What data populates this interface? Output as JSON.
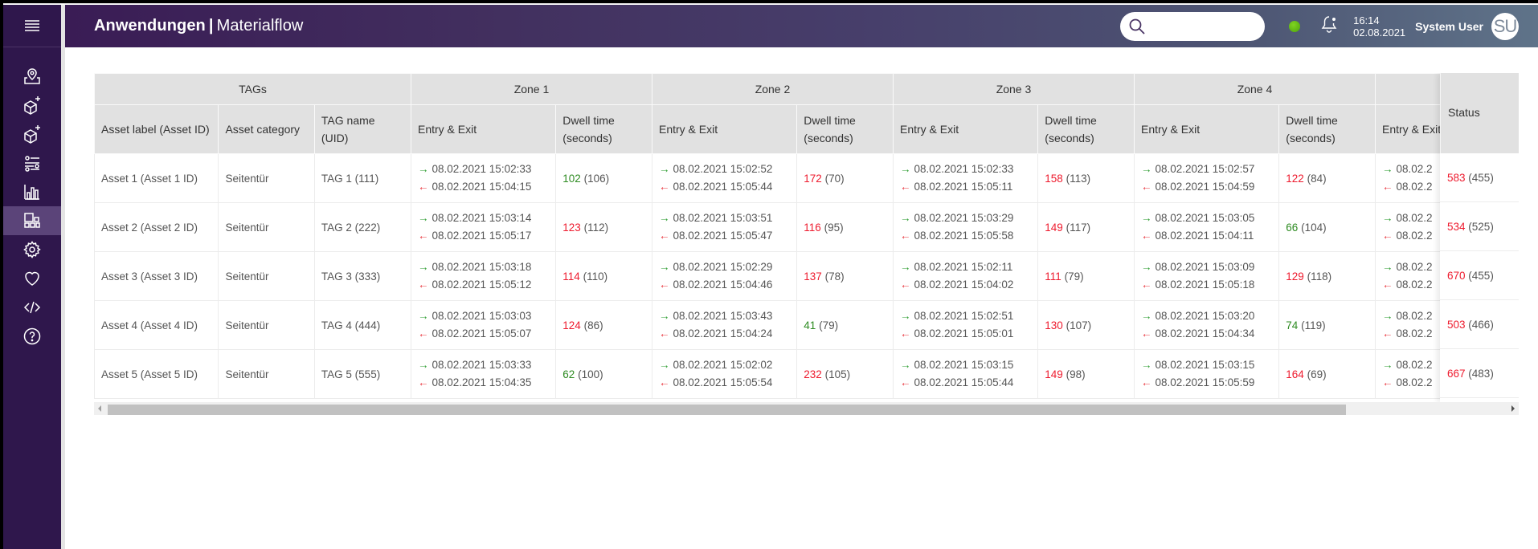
{
  "header": {
    "app_title": "Anwendungen",
    "separator": "|",
    "page_title": "Materialflow",
    "search_placeholder": "",
    "status_indicator_color": "#5cb815",
    "time": "16:14",
    "date": "02.08.2021",
    "user_name": "System User",
    "user_initials": "SU"
  },
  "sidebar": {
    "items": [
      {
        "icon": "map-pin-icon",
        "active": false
      },
      {
        "icon": "add-box-icon",
        "active": false
      },
      {
        "icon": "add-box-icon-2",
        "active": false
      },
      {
        "icon": "sliders-icon",
        "active": false
      },
      {
        "icon": "bar-chart-icon",
        "active": false
      },
      {
        "icon": "dashboard-icon",
        "active": true
      },
      {
        "icon": "gear-icon",
        "active": false
      },
      {
        "icon": "heart-icon",
        "active": false
      },
      {
        "icon": "code-icon",
        "active": false
      },
      {
        "icon": "help-icon",
        "active": false
      }
    ]
  },
  "table": {
    "group_headers": {
      "tags": "TAGs",
      "zone1": "Zone 1",
      "zone2": "Zone 2",
      "zone3": "Zone 3",
      "zone4": "Zone 4",
      "zone5": ""
    },
    "columns": {
      "asset_label": "Asset label (Asset ID)",
      "asset_category": "Asset category",
      "tag_name": "TAG name (UID)",
      "entry_exit": "Entry & Exit",
      "dwell_line1": "Dwell time",
      "dwell_line2": "(seconds)",
      "status": "Status"
    },
    "rows": [
      {
        "asset": "Asset 1 (Asset 1 ID)",
        "category": "Seitentür",
        "tag": "TAG 1 (111)",
        "zones": [
          {
            "entry": "08.02.2021 15:02:33",
            "exit": "08.02.2021 15:04:15",
            "dwell": "102",
            "dwell_ref": "(106)",
            "dwell_state": "green"
          },
          {
            "entry": "08.02.2021 15:02:52",
            "exit": "08.02.2021 15:05:44",
            "dwell": "172",
            "dwell_ref": "(70)",
            "dwell_state": "red"
          },
          {
            "entry": "08.02.2021 15:02:33",
            "exit": "08.02.2021 15:05:11",
            "dwell": "158",
            "dwell_ref": "(113)",
            "dwell_state": "red"
          },
          {
            "entry": "08.02.2021 15:02:57",
            "exit": "08.02.2021 15:04:59",
            "dwell": "122",
            "dwell_ref": "(84)",
            "dwell_state": "red"
          },
          {
            "entry": "08.02.2",
            "exit": "08.02.2"
          }
        ],
        "status": "583",
        "status_ref": "(455)"
      },
      {
        "asset": "Asset 2 (Asset 2 ID)",
        "category": "Seitentür",
        "tag": "TAG 2 (222)",
        "zones": [
          {
            "entry": "08.02.2021 15:03:14",
            "exit": "08.02.2021 15:05:17",
            "dwell": "123",
            "dwell_ref": "(112)",
            "dwell_state": "red"
          },
          {
            "entry": "08.02.2021 15:03:51",
            "exit": "08.02.2021 15:05:47",
            "dwell": "116",
            "dwell_ref": "(95)",
            "dwell_state": "red"
          },
          {
            "entry": "08.02.2021 15:03:29",
            "exit": "08.02.2021 15:05:58",
            "dwell": "149",
            "dwell_ref": "(117)",
            "dwell_state": "red"
          },
          {
            "entry": "08.02.2021 15:03:05",
            "exit": "08.02.2021 15:04:11",
            "dwell": "66",
            "dwell_ref": "(104)",
            "dwell_state": "green"
          },
          {
            "entry": "08.02.2",
            "exit": "08.02.2"
          }
        ],
        "status": "534",
        "status_ref": "(525)"
      },
      {
        "asset": "Asset 3 (Asset 3 ID)",
        "category": "Seitentür",
        "tag": "TAG 3 (333)",
        "zones": [
          {
            "entry": "08.02.2021 15:03:18",
            "exit": "08.02.2021 15:05:12",
            "dwell": "114",
            "dwell_ref": "(110)",
            "dwell_state": "red"
          },
          {
            "entry": "08.02.2021 15:02:29",
            "exit": "08.02.2021 15:04:46",
            "dwell": "137",
            "dwell_ref": "(78)",
            "dwell_state": "red"
          },
          {
            "entry": "08.02.2021 15:02:11",
            "exit": "08.02.2021 15:04:02",
            "dwell": "111",
            "dwell_ref": "(79)",
            "dwell_state": "red"
          },
          {
            "entry": "08.02.2021 15:03:09",
            "exit": "08.02.2021 15:05:18",
            "dwell": "129",
            "dwell_ref": "(118)",
            "dwell_state": "red"
          },
          {
            "entry": "08.02.2",
            "exit": "08.02.2"
          }
        ],
        "status": "670",
        "status_ref": "(455)"
      },
      {
        "asset": "Asset 4 (Asset 4 ID)",
        "category": "Seitentür",
        "tag": "TAG 4 (444)",
        "zones": [
          {
            "entry": "08.02.2021 15:03:03",
            "exit": "08.02.2021 15:05:07",
            "dwell": "124",
            "dwell_ref": "(86)",
            "dwell_state": "red"
          },
          {
            "entry": "08.02.2021 15:03:43",
            "exit": "08.02.2021 15:04:24",
            "dwell": "41",
            "dwell_ref": "(79)",
            "dwell_state": "green"
          },
          {
            "entry": "08.02.2021 15:02:51",
            "exit": "08.02.2021 15:05:01",
            "dwell": "130",
            "dwell_ref": "(107)",
            "dwell_state": "red"
          },
          {
            "entry": "08.02.2021 15:03:20",
            "exit": "08.02.2021 15:04:34",
            "dwell": "74",
            "dwell_ref": "(119)",
            "dwell_state": "green"
          },
          {
            "entry": "08.02.2",
            "exit": "08.02.2"
          }
        ],
        "status": "503",
        "status_ref": "(466)"
      },
      {
        "asset": "Asset 5 (Asset 5 ID)",
        "category": "Seitentür",
        "tag": "TAG 5 (555)",
        "zones": [
          {
            "entry": "08.02.2021 15:03:33",
            "exit": "08.02.2021 15:04:35",
            "dwell": "62",
            "dwell_ref": "(100)",
            "dwell_state": "green"
          },
          {
            "entry": "08.02.2021 15:02:02",
            "exit": "08.02.2021 15:05:54",
            "dwell": "232",
            "dwell_ref": "(105)",
            "dwell_state": "red"
          },
          {
            "entry": "08.02.2021 15:03:15",
            "exit": "08.02.2021 15:05:44",
            "dwell": "149",
            "dwell_ref": "(98)",
            "dwell_state": "red"
          },
          {
            "entry": "08.02.2021 15:03:15",
            "exit": "08.02.2021 15:05:59",
            "dwell": "164",
            "dwell_ref": "(69)",
            "dwell_state": "red"
          },
          {
            "entry": "08.02.2",
            "exit": "08.02.2"
          }
        ],
        "status": "667",
        "status_ref": "(483)"
      }
    ]
  },
  "colors": {
    "sidebar_bg": "#2f174c",
    "sidebar_active": "#5b4479",
    "header_gradient_start": "#3a1c55",
    "header_gradient_end": "#5f7389",
    "entry_arrow": "#2e9e32",
    "exit_arrow": "#e8333b",
    "dwell_over": "#ee1b2e",
    "dwell_ok": "#2e8b22"
  }
}
